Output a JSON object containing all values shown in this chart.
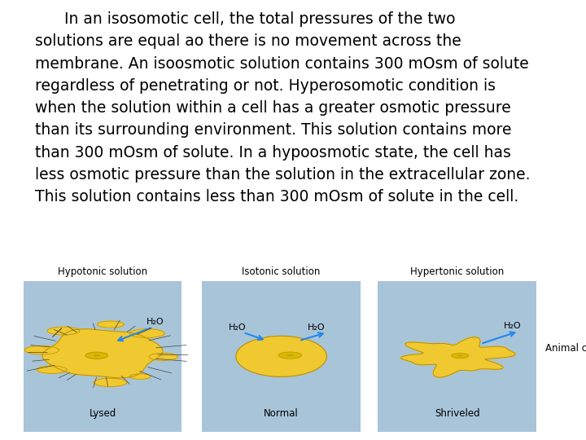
{
  "background_color": "#ffffff",
  "text_paragraph": "      In an isosomotic cell, the total pressures of the two\nsolutions are equal ao there is no movement across the\nmembrane. An isoosmotic solution contains 300 mOsm of solute\nregardless of penetrating or not. Hyperosomotic condition is\nwhen the solution within a cell has a greater osmotic pressure\nthan its surrounding environment. This solution contains more\nthan 300 mOsm of solute. In a hypoosmotic state, the cell has\nless osmotic pressure than the solution in the extracellular zone.\nThis solution contains less than 300 mOsm of solute in the cell.",
  "text_fontsize": 13.5,
  "text_color": "#000000",
  "panel_bg": "#a8c4d8",
  "panel_labels": [
    "Hypotonic solution",
    "Isotonic solution",
    "Hypertonic solution"
  ],
  "panel_sublabels": [
    "Lysed",
    "Normal",
    "Shriveled"
  ],
  "animal_cell_label": "Animal cell",
  "h2o_label": "H₂O",
  "cell_color": "#f0c830",
  "cell_outline": "#b89000",
  "arrow_color": "#2288ee"
}
